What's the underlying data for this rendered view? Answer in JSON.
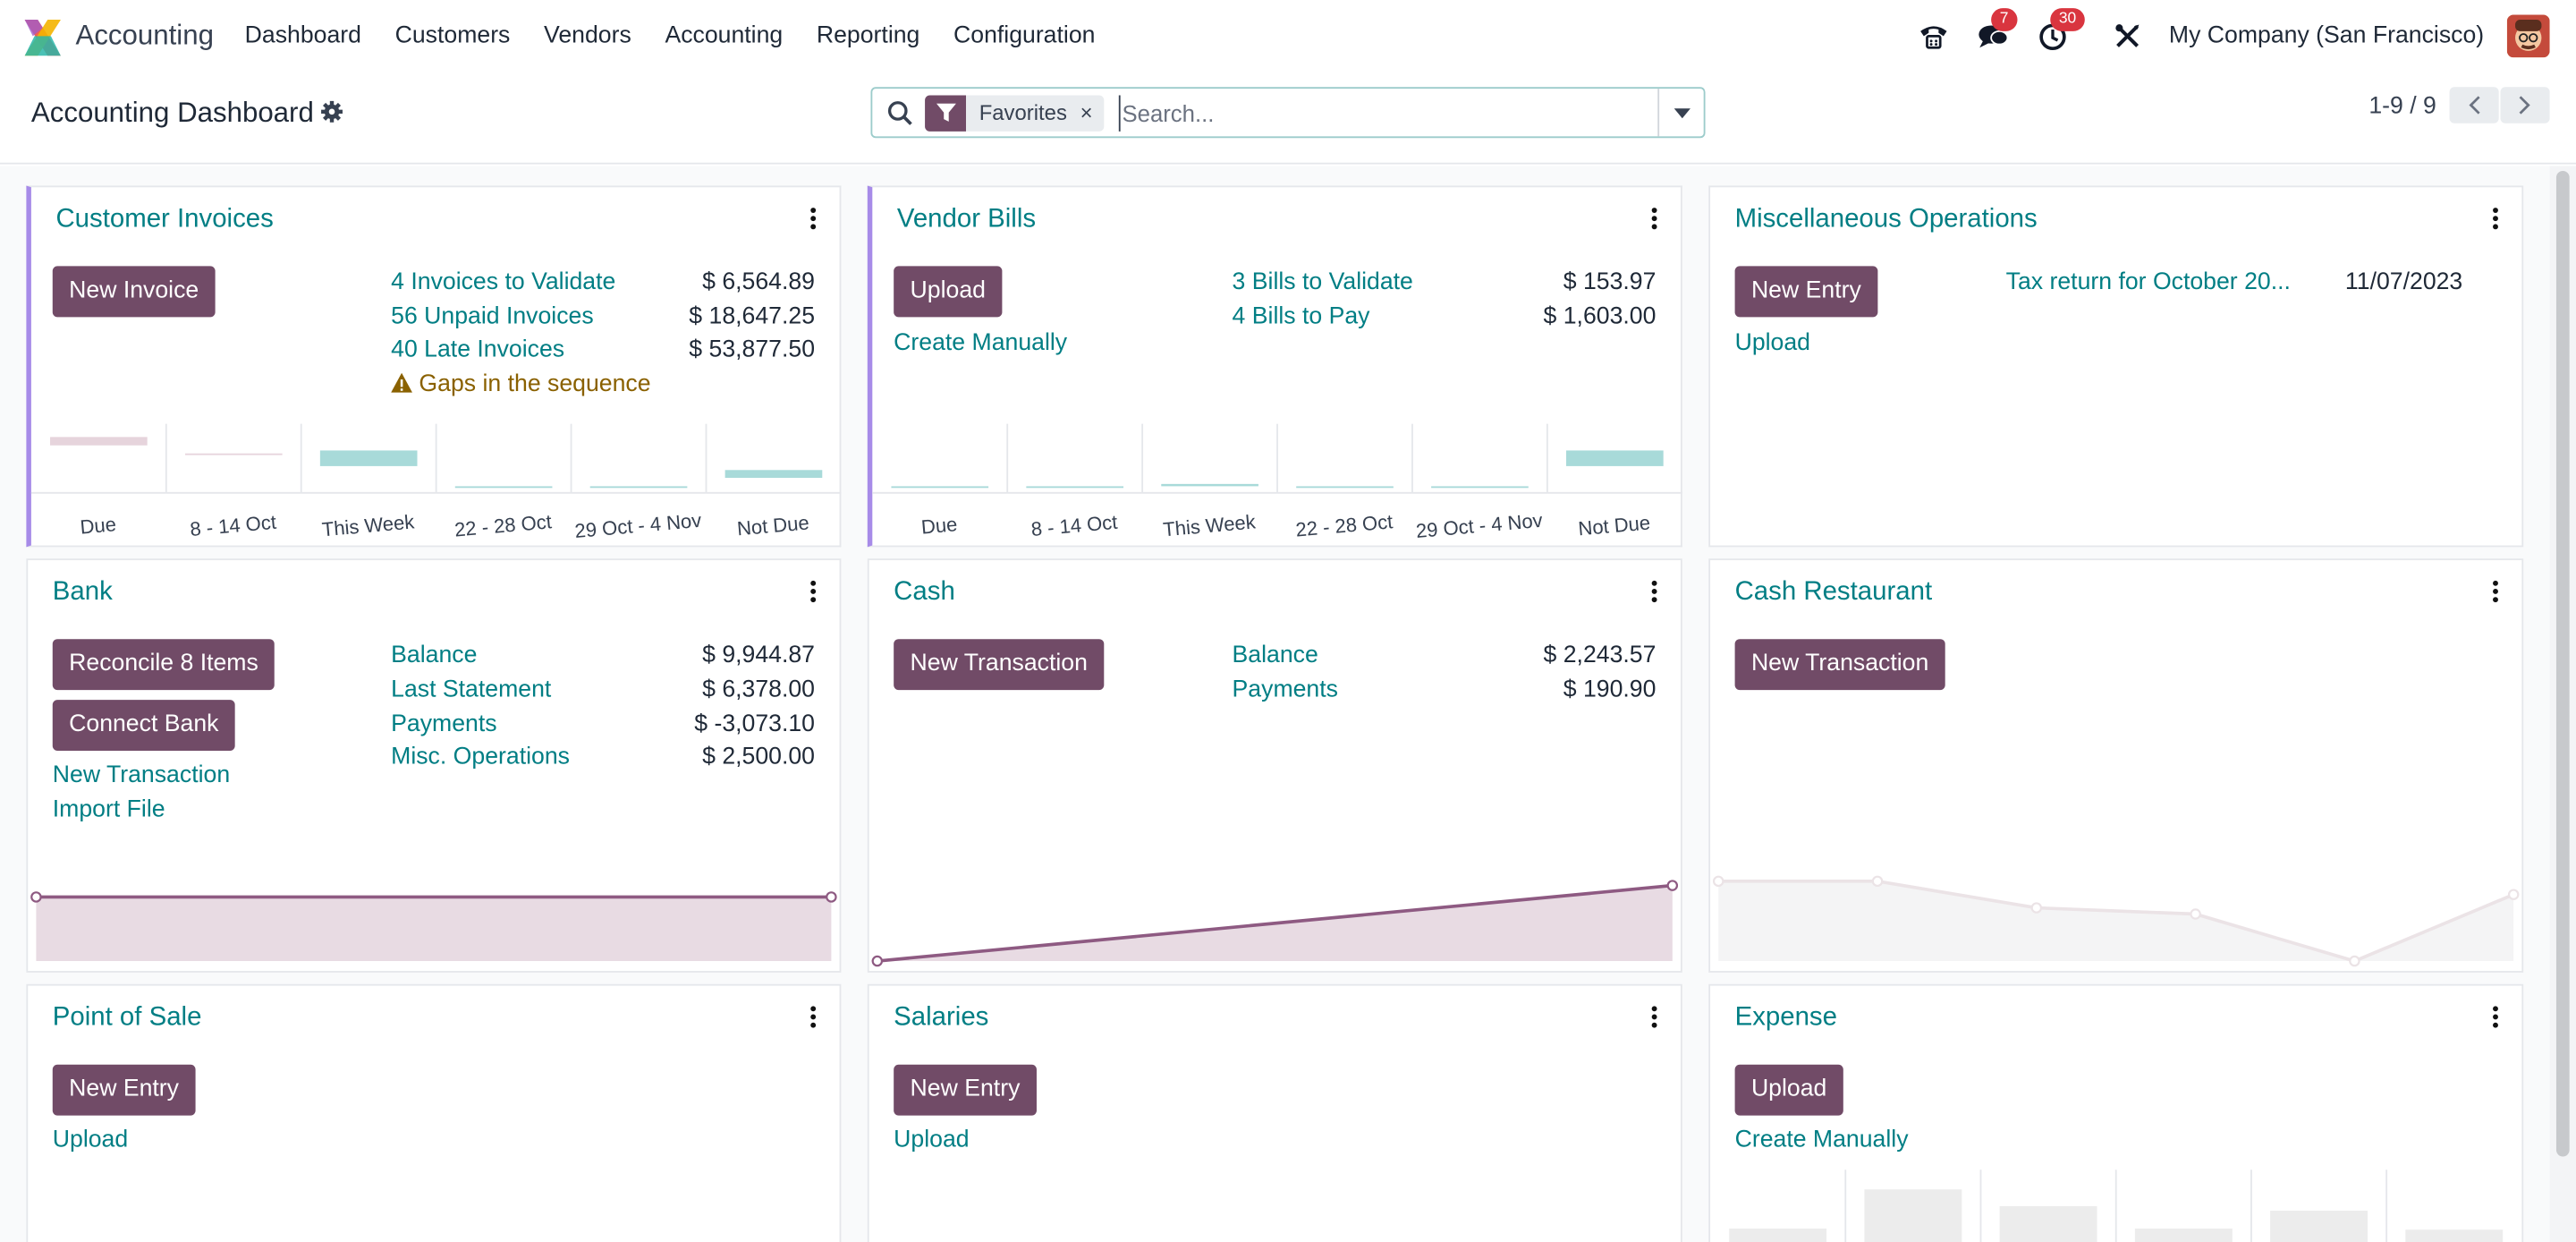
{
  "navbar": {
    "app_name": "Accounting",
    "menu": [
      "Dashboard",
      "Customers",
      "Vendors",
      "Accounting",
      "Reporting",
      "Configuration"
    ],
    "messages_count": "7",
    "activities_count": "30",
    "company": "My Company (San Francisco)",
    "icons": [
      "phone-icon",
      "chat-icon",
      "clock-icon",
      "tools-icon"
    ]
  },
  "control": {
    "title": "Accounting Dashboard",
    "facet_label": "Favorites",
    "facet_remove": "×",
    "search_placeholder": "Search...",
    "pager": "1-9 / 9"
  },
  "colors": {
    "brand": "#714b67",
    "link": "#017e84",
    "bar_positive": "#a8dad9",
    "bar_past": "#e6d4dc",
    "accent_border": "#a78be8"
  },
  "cards": {
    "customer_invoices": {
      "title": "Customer Invoices",
      "button": "New Invoice",
      "rows": [
        {
          "label": "4 Invoices to Validate",
          "amount": "$ 6,564.89"
        },
        {
          "label": "56 Unpaid Invoices",
          "amount": "$ 18,647.25"
        },
        {
          "label": "40 Late Invoices",
          "amount": "$ 53,877.50"
        }
      ],
      "warning": "Gaps in the sequence"
    },
    "vendor_bills": {
      "title": "Vendor Bills",
      "button": "Upload",
      "secondary_link": "Create Manually",
      "rows": [
        {
          "label": "3 Bills to Validate",
          "amount": "$ 153.97"
        },
        {
          "label": "4 Bills to Pay",
          "amount": "$ 1,603.00"
        }
      ]
    },
    "misc_operations": {
      "title": "Miscellaneous Operations",
      "button": "New Entry",
      "secondary_link": "Upload",
      "row_label": "Tax return for October 20...",
      "row_date": "11/07/2023"
    },
    "bank": {
      "title": "Bank",
      "button1": "Reconcile 8 Items",
      "button2": "Connect Bank",
      "link1": "New Transaction",
      "link2": "Import File",
      "rows": [
        {
          "label": "Balance",
          "amount": "$ 9,944.87"
        },
        {
          "label": "Last Statement",
          "amount": "$ 6,378.00"
        },
        {
          "label": "Payments",
          "amount": "$ -3,073.10"
        },
        {
          "label": "Misc. Operations",
          "amount": "$ 2,500.00"
        }
      ]
    },
    "cash": {
      "title": "Cash",
      "button": "New Transaction",
      "rows": [
        {
          "label": "Balance",
          "amount": "$ 2,243.57"
        },
        {
          "label": "Payments",
          "amount": "$ 190.90"
        }
      ]
    },
    "cash_restaurant": {
      "title": "Cash Restaurant",
      "button": "New Transaction"
    },
    "point_of_sale": {
      "title": "Point of Sale",
      "button": "New Entry",
      "secondary_link": "Upload"
    },
    "salaries": {
      "title": "Salaries",
      "button": "New Entry",
      "secondary_link": "Upload"
    },
    "expense": {
      "title": "Expense",
      "button": "Upload",
      "secondary_link": "Create Manually"
    }
  },
  "chart_data": [
    {
      "type": "bar",
      "categories": [
        "Due",
        "8 - 14 Oct",
        "This Week",
        "22 - 28 Oct",
        "29 Oct - 4 Nov",
        "Not Due"
      ],
      "values": [
        -0.5,
        -0.02,
        0.7,
        0,
        0,
        0.35
      ],
      "colors": [
        "#e6d4dc",
        "#e6d4dc",
        "#a8dad9",
        "#a8dad9",
        "#a8dad9",
        "#a8dad9"
      ]
    },
    {
      "type": "bar",
      "categories": [
        "Due",
        "8 - 14 Oct",
        "This Week",
        "22 - 28 Oct",
        "29 Oct - 4 Nov",
        "Not Due"
      ],
      "values": [
        0,
        0,
        0.1,
        0,
        0,
        0.7
      ],
      "colors": [
        "#a8dad9",
        "#a8dad9",
        "#a8dad9",
        "#a8dad9",
        "#a8dad9",
        "#a8dad9"
      ]
    },
    {
      "type": "area",
      "values": [
        1,
        1
      ],
      "color": "#714b67"
    },
    {
      "type": "area",
      "values": [
        0,
        1
      ],
      "color": "#714b67"
    },
    {
      "type": "area",
      "values": [
        0.9,
        0.9,
        0.6,
        0.53,
        0,
        0.75
      ],
      "color": "#e5e7eb"
    },
    {
      "type": "bar",
      "values": [
        0.3,
        1,
        0.7,
        0.3,
        0.62,
        0.28
      ],
      "color": "#ececec"
    }
  ]
}
